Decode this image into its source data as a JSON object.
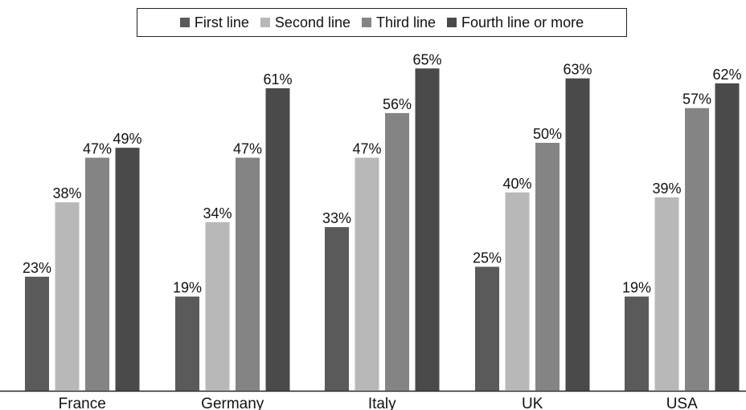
{
  "chart_data": {
    "type": "bar",
    "categories": [
      "France",
      "Germany",
      "Italy",
      "UK",
      "USA"
    ],
    "series": [
      {
        "name": "First line",
        "color": "#5a5a5a",
        "values": [
          23,
          19,
          33,
          25,
          19
        ],
        "labels": [
          "23%",
          "19%",
          "33%",
          "25%",
          "19%"
        ]
      },
      {
        "name": "Second line",
        "color": "#b8b8b8",
        "values": [
          38,
          34,
          47,
          40,
          39
        ],
        "labels": [
          "38%",
          "34%",
          "47%",
          "40%",
          "39%"
        ]
      },
      {
        "name": "Third line",
        "color": "#848484",
        "values": [
          47,
          47,
          56,
          50,
          57
        ],
        "labels": [
          "47%",
          "47%",
          "56%",
          "50%",
          "57%"
        ]
      },
      {
        "name": "Fourth line or more",
        "color": "#4a4a4a",
        "values": [
          49,
          61,
          65,
          63,
          62
        ],
        "labels": [
          "49%",
          "61%",
          "65%",
          "63%",
          "62%"
        ]
      }
    ],
    "title": "",
    "xlabel": "",
    "ylabel": "",
    "ylim": [
      0,
      70
    ],
    "grid": false,
    "legend_position": "top"
  }
}
